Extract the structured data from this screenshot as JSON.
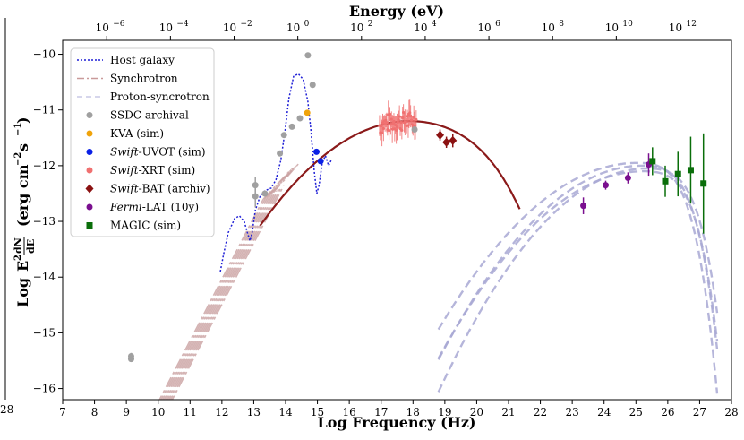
{
  "chart_data": {
    "type": "scatter",
    "x_title": "Log Frequency (Hz)",
    "y_title_main": "Log",
    "y_title_unit": "(erg cm",
    "y_title_unit_exp1": "−2",
    "y_title_unit_mid": " s",
    "y_title_unit_exp2": "−1",
    "y_title_unit_end": ")",
    "y_title_frac_num": "dN",
    "y_title_frac_den": "dE",
    "y_title_E2": "E",
    "y_title_E2_exp": "2",
    "top_title": "Energy (eV)",
    "xlim": [
      7,
      28
    ],
    "ylim": [
      -16.2,
      -9.75
    ],
    "x_ticks": [
      7,
      8,
      9,
      10,
      11,
      12,
      13,
      14,
      15,
      16,
      17,
      18,
      19,
      20,
      21,
      22,
      23,
      24,
      25,
      26,
      27,
      28
    ],
    "y_ticks": [
      -16,
      -15,
      -14,
      -13,
      -12,
      -11,
      -10
    ],
    "y_tick_labels": [
      "−16",
      "−15",
      "−14",
      "−13",
      "−12",
      "−11",
      "−10"
    ],
    "top_ticks": [
      {
        "base": "10",
        "exp": "−6",
        "log_energy_ev": -6
      },
      {
        "base": "10",
        "exp": "−4",
        "log_energy_ev": -4
      },
      {
        "base": "10",
        "exp": "−2",
        "log_energy_ev": -2
      },
      {
        "base": "10",
        "exp": "0",
        "log_energy_ev": 0
      },
      {
        "base": "10",
        "exp": "2",
        "log_energy_ev": 2
      },
      {
        "base": "10",
        "exp": "4",
        "log_energy_ev": 4
      },
      {
        "base": "10",
        "exp": "6",
        "log_energy_ev": 6
      },
      {
        "base": "10",
        "exp": "8",
        "log_energy_ev": 8
      },
      {
        "base": "10",
        "exp": "10",
        "log_energy_ev": 10
      },
      {
        "base": "10",
        "exp": "12",
        "log_energy_ev": 12
      }
    ],
    "legend_placement": "top-left",
    "legend": [
      {
        "label": "Host galaxy",
        "kind": "line",
        "style": "dotted",
        "color": "#1f1fd6"
      },
      {
        "label": "Synchrotron",
        "kind": "line",
        "style": "dashdot",
        "color": "#c99a9a"
      },
      {
        "label": "Proton-syncrotron",
        "kind": "line",
        "style": "dashed",
        "color": "#c8c8e6"
      },
      {
        "label": "SSDC archival",
        "kind": "marker",
        "marker": "circle",
        "color": "#a0a0a0"
      },
      {
        "label": "KVA (sim)",
        "kind": "marker",
        "marker": "circle",
        "color": "#f0a30a"
      },
      {
        "label_italic": "Swift",
        "label_rest": "-UVOT (sim)",
        "kind": "marker",
        "marker": "circle",
        "color": "#0a20e6"
      },
      {
        "label_italic": "Swift",
        "label_rest": "-XRT (sim)",
        "kind": "marker",
        "marker": "circle",
        "color": "#f07070"
      },
      {
        "label_italic": "Swift",
        "label_rest": "-BAT (archiv)",
        "kind": "marker",
        "marker": "diamond",
        "color": "#8b1212"
      },
      {
        "label_italic": "Fermi",
        "label_rest": "-LAT (10y)",
        "kind": "marker",
        "marker": "circle",
        "color": "#7a0f8f"
      },
      {
        "label": "MAGIC (sim)",
        "kind": "marker",
        "marker": "square",
        "color": "#0a6e0a"
      }
    ],
    "series": [
      {
        "name": "SSDC archival",
        "color": "#a0a0a0",
        "points": [
          {
            "x": 9.15,
            "y": -15.42,
            "err": 0.06
          },
          {
            "x": 9.15,
            "y": -15.47,
            "err": 0.04
          },
          {
            "x": 13.05,
            "y": -12.35,
            "err": 0.15
          },
          {
            "x": 13.05,
            "y": -12.55,
            "err": 0.2
          },
          {
            "x": 13.35,
            "y": -12.5,
            "err": 0.05
          },
          {
            "x": 13.82,
            "y": -11.78,
            "err": 0.05
          },
          {
            "x": 13.95,
            "y": -11.45,
            "err": 0.05
          },
          {
            "x": 14.2,
            "y": -11.3,
            "err": 0.05
          },
          {
            "x": 14.45,
            "y": -11.15,
            "err": 0.05
          },
          {
            "x": 14.7,
            "y": -10.02,
            "err": 0.04
          },
          {
            "x": 14.85,
            "y": -10.55,
            "err": 0.04
          },
          {
            "x": 18.05,
            "y": -11.35,
            "err": 0.05
          }
        ]
      },
      {
        "name": "KVA (sim)",
        "color": "#f0a30a",
        "points": [
          {
            "x": 14.68,
            "y": -11.05,
            "err": 0.03
          }
        ]
      },
      {
        "name": "Swift-UVOT (sim)",
        "color": "#0a20e6",
        "points": [
          {
            "x": 14.97,
            "y": -11.75,
            "err": 0.03
          },
          {
            "x": 15.1,
            "y": -11.92,
            "err": 0.03
          }
        ]
      },
      {
        "name": "Swift-BAT (archiv)",
        "color": "#8b1212",
        "points": [
          {
            "x": 18.85,
            "y": -11.45,
            "err": 0.1
          },
          {
            "x": 19.05,
            "y": -11.58,
            "err": 0.1
          },
          {
            "x": 19.25,
            "y": -11.55,
            "err": 0.12
          }
        ]
      },
      {
        "name": "Fermi-LAT (10y)",
        "color": "#7a0f8f",
        "points": [
          {
            "x": 23.35,
            "y": -12.72,
            "err": 0.15
          },
          {
            "x": 24.05,
            "y": -12.35,
            "err": 0.08
          },
          {
            "x": 24.75,
            "y": -12.22,
            "err": 0.1
          },
          {
            "x": 25.4,
            "y": -11.98,
            "err": 0.2
          }
        ]
      },
      {
        "name": "MAGIC (sim)",
        "color": "#0a6e0a",
        "points": [
          {
            "x": 25.52,
            "y": -11.92,
            "err": 0.25
          },
          {
            "x": 25.92,
            "y": -12.28,
            "err": 0.28
          },
          {
            "x": 26.32,
            "y": -12.15,
            "err": 0.4
          },
          {
            "x": 26.72,
            "y": -12.08,
            "err": 0.6
          },
          {
            "x": 27.12,
            "y": -12.32,
            "err": 0.9
          }
        ]
      }
    ],
    "xrt_cluster": {
      "x_range": [
        16.95,
        18.1
      ],
      "color": "#f07070"
    },
    "host_galaxy_curve": [
      [
        11.95,
        -13.9
      ],
      [
        12.05,
        -13.6
      ],
      [
        12.2,
        -13.2
      ],
      [
        12.4,
        -12.95
      ],
      [
        12.55,
        -12.9
      ],
      [
        12.7,
        -13.0
      ],
      [
        12.8,
        -13.2
      ],
      [
        12.88,
        -13.35
      ],
      [
        12.95,
        -13.2
      ],
      [
        13.05,
        -12.8
      ],
      [
        13.2,
        -12.55
      ],
      [
        13.35,
        -12.45
      ],
      [
        13.55,
        -12.4
      ],
      [
        13.7,
        -12.25
      ],
      [
        13.85,
        -11.9
      ],
      [
        14.0,
        -11.3
      ],
      [
        14.1,
        -10.8
      ],
      [
        14.25,
        -10.4
      ],
      [
        14.4,
        -10.35
      ],
      [
        14.55,
        -10.45
      ],
      [
        14.7,
        -10.85
      ],
      [
        14.8,
        -11.4
      ],
      [
        14.9,
        -12.1
      ],
      [
        14.98,
        -12.5
      ],
      [
        15.05,
        -12.35
      ],
      [
        15.15,
        -11.95
      ],
      [
        15.25,
        -11.82
      ],
      [
        15.35,
        -12.0
      ],
      [
        15.45,
        -11.88
      ]
    ],
    "synchrotron_peak": {
      "x": 17.9,
      "y": -11.2
    },
    "proton_peak": {
      "x": 25.2,
      "y": -12.0
    }
  }
}
